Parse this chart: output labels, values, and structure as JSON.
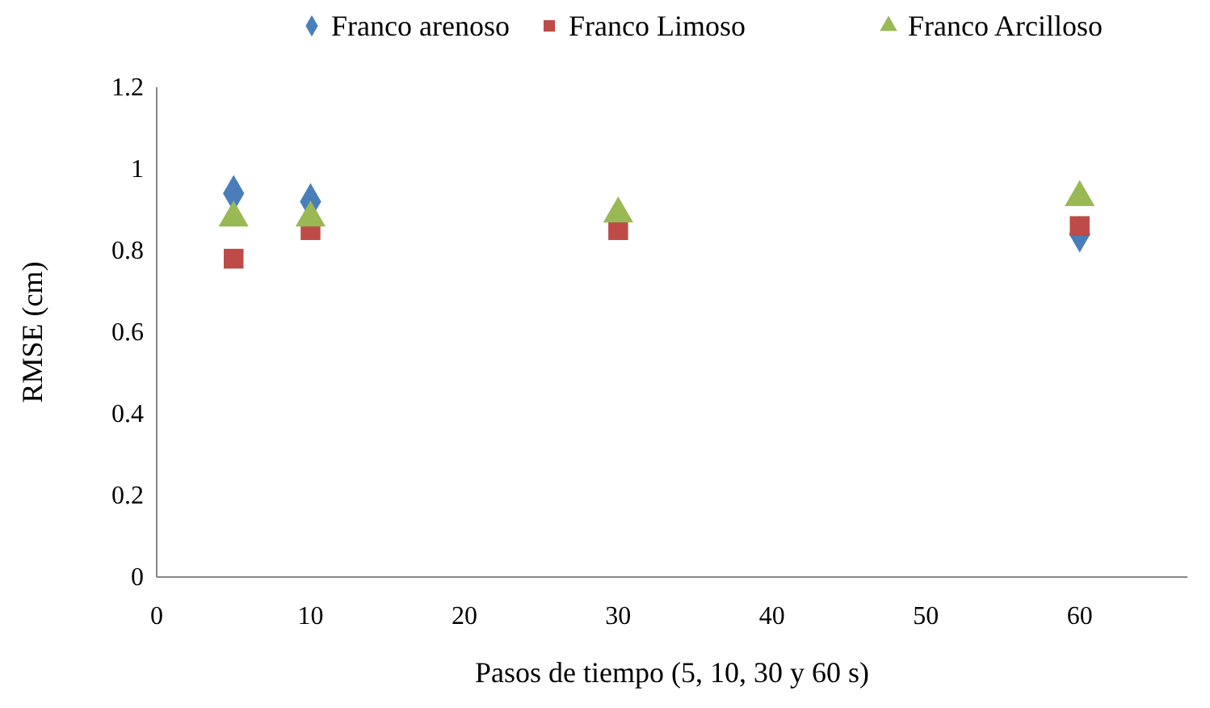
{
  "chart_data": {
    "type": "scatter",
    "xlabel": "Pasos de tiempo (5, 10, 30 y 60 s)",
    "ylabel": "RMSE (cm)",
    "x": [
      5,
      10,
      30,
      60
    ],
    "series": [
      {
        "name": "Franco arenoso",
        "color": "#4a7ebb",
        "marker": "diamond",
        "values": [
          0.94,
          0.92,
          null,
          0.84
        ]
      },
      {
        "name": "Franco Limoso",
        "color": "#be4b48",
        "marker": "square",
        "values": [
          0.78,
          0.85,
          0.85,
          0.86
        ]
      },
      {
        "name": "Franco Arcilloso",
        "color": "#98b954",
        "marker": "triangle",
        "values": [
          0.88,
          0.88,
          0.89,
          0.93
        ]
      }
    ],
    "xlim": [
      0,
      67
    ],
    "xticks": [
      0,
      10,
      20,
      30,
      40,
      50,
      60
    ],
    "ylim": [
      0,
      1.2
    ],
    "yticks": [
      0,
      0.2,
      0.4,
      0.6,
      0.8,
      1,
      1.2
    ],
    "grid": false,
    "legend": "top"
  }
}
